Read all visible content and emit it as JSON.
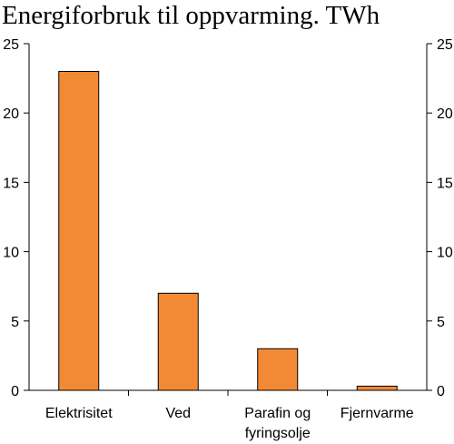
{
  "chart_data": {
    "type": "bar",
    "title": "Energiforbruk til oppvarming. TWh",
    "categories": [
      [
        "Elektrisitet"
      ],
      [
        "Ved"
      ],
      [
        "Parafin og",
        "fyringsolje"
      ],
      [
        "Fjernvarme"
      ]
    ],
    "values": [
      23,
      7,
      3,
      0.3
    ],
    "ylim": [
      0,
      25
    ],
    "yticks": [
      0,
      5,
      10,
      15,
      20,
      25
    ],
    "xlabel": "",
    "ylabel": "",
    "grid": false,
    "right_axis_mirrored": true,
    "bar_color": "#f28a35",
    "bar_edge_color": "#000000"
  }
}
